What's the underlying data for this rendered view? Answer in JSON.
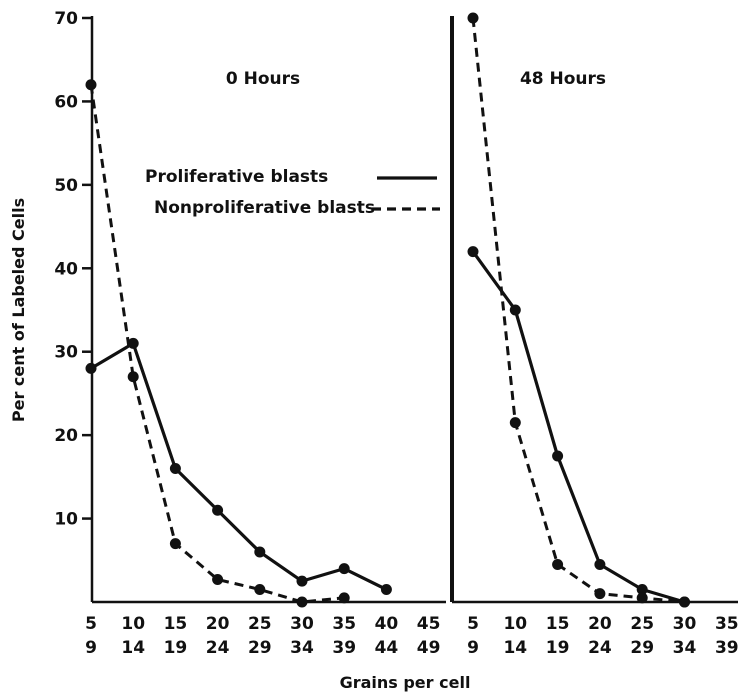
{
  "chart_data": {
    "type": "line",
    "ylabel": "Per cent of Labeled Cells",
    "xlabel": "Grains per cell",
    "y_ticks": [
      "10",
      "20",
      "30",
      "40",
      "50",
      "60",
      "70"
    ],
    "ylim": [
      0,
      70
    ],
    "grid": false,
    "legend": {
      "placement": "top-center",
      "items": [
        {
          "label": "Proliferative blasts",
          "style": "solid"
        },
        {
          "label": "Nonproliferative blasts",
          "style": "dashed"
        }
      ]
    },
    "panels": [
      {
        "title": "0 Hours",
        "categories": [
          {
            "top": "5",
            "bottom": "9"
          },
          {
            "top": "10",
            "bottom": "14"
          },
          {
            "top": "15",
            "bottom": "19"
          },
          {
            "top": "20",
            "bottom": "24"
          },
          {
            "top": "25",
            "bottom": "29"
          },
          {
            "top": "30",
            "bottom": "34"
          },
          {
            "top": "35",
            "bottom": "39"
          },
          {
            "top": "40",
            "bottom": "44"
          },
          {
            "top": "45",
            "bottom": "49"
          }
        ],
        "series": [
          {
            "name": "Proliferative blasts",
            "style": "solid",
            "values": [
              28,
              31,
              16,
              11,
              6,
              2.5,
              4,
              1.5
            ]
          },
          {
            "name": "Nonproliferative blasts",
            "style": "dashed",
            "values": [
              62,
              27,
              7,
              2.7,
              1.5,
              0,
              0.5
            ]
          }
        ]
      },
      {
        "title": "48 Hours",
        "categories": [
          {
            "top": "5",
            "bottom": "9"
          },
          {
            "top": "10",
            "bottom": "14"
          },
          {
            "top": "15",
            "bottom": "19"
          },
          {
            "top": "20",
            "bottom": "24"
          },
          {
            "top": "25",
            "bottom": "29"
          },
          {
            "top": "30",
            "bottom": "34"
          },
          {
            "top": "35",
            "bottom": "39"
          }
        ],
        "series": [
          {
            "name": "Proliferative blasts",
            "style": "solid",
            "values": [
              42,
              35,
              17.5,
              4.5,
              1.5,
              0
            ]
          },
          {
            "name": "Nonproliferative blasts",
            "style": "dashed",
            "values": [
              70,
              21.5,
              4.5,
              1,
              0.5,
              0
            ]
          }
        ]
      }
    ],
    "colors": {
      "ink": "#111111",
      "background": "#ffffff"
    }
  }
}
